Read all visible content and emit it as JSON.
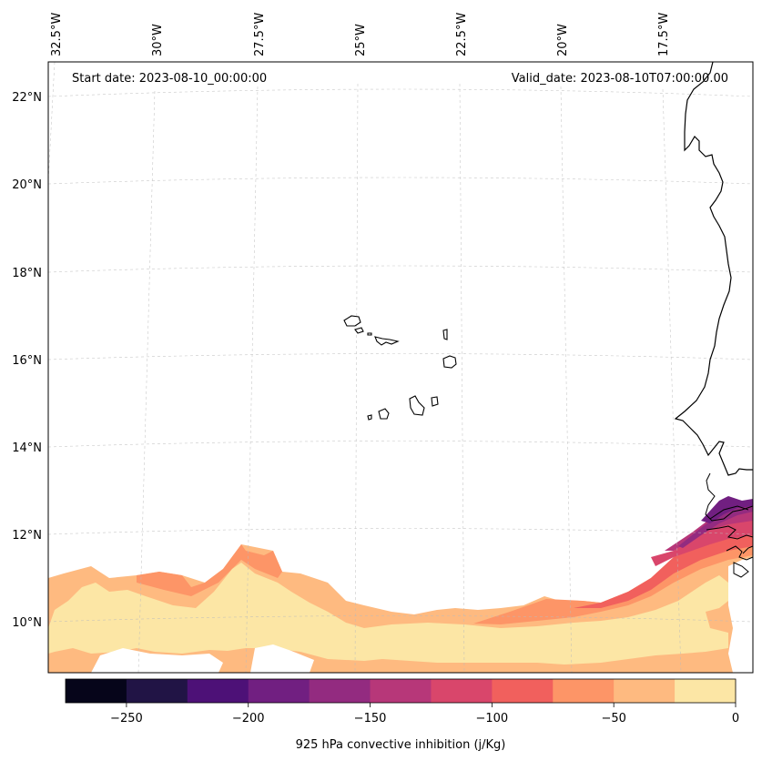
{
  "map": {
    "start_label": "Start date: 2023-08-10_00:00:00",
    "valid_label": "Valid_date: 2023-08-10T07:00:00.00",
    "lon_labels": [
      "32.5°W",
      "30°W",
      "27.5°W",
      "25°W",
      "22.5°W",
      "20°W",
      "17.5°W"
    ],
    "lat_labels": [
      "22°N",
      "20°N",
      "18°N",
      "16°N",
      "14°N",
      "12°N",
      "10°N"
    ]
  },
  "colorbar": {
    "label": "925 hPa convective inhibition (j/Kg)",
    "ticks": [
      "−250",
      "−200",
      "−150",
      "−100",
      "−50",
      "0"
    ],
    "levels": [
      -275,
      -250,
      -225,
      -200,
      -175,
      -150,
      -125,
      -100,
      -75,
      -50,
      -25,
      0
    ],
    "colors": [
      "#06051a",
      "#211445",
      "#4d1177",
      "#711f81",
      "#932b80",
      "#b73779",
      "#d9466b",
      "#f1605d",
      "#fd9567",
      "#feba80",
      "#fce6a5"
    ]
  }
}
